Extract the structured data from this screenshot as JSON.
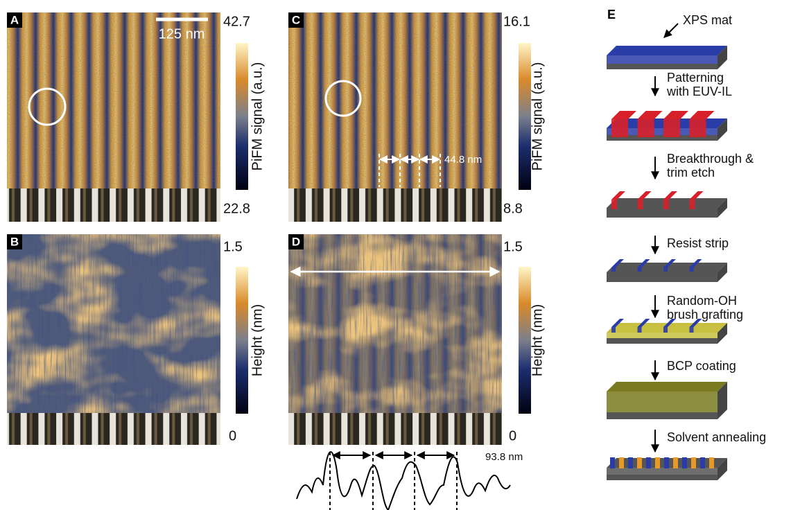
{
  "panels": [
    {
      "label": "A",
      "scale_bar": "125 nm",
      "colorbar_max": 42.7,
      "colorbar_min": 22.8,
      "colorbar_label": "PiFM signal (a.u.)"
    },
    {
      "label": "B",
      "colorbar_max": 1.5,
      "colorbar_min": 0,
      "colorbar_label": "Height (nm)"
    },
    {
      "label": "C",
      "colorbar_max": 16.1,
      "colorbar_min": 8.8,
      "colorbar_label": "PiFM signal (a.u.)",
      "annotation": "44.8 nm"
    },
    {
      "label": "D",
      "colorbar_max": 1.5,
      "colorbar_min": 0,
      "colorbar_label": "Height (nm)",
      "annotation": "93.8 nm"
    }
  ],
  "process": {
    "label": "E",
    "steps": [
      [
        "XPS mat"
      ],
      [
        "Patterning",
        "with EUV-IL"
      ],
      [
        "Breakthrough &",
        "trim etch"
      ],
      [
        "Resist strip"
      ],
      [
        "Random-OH",
        "brush grafting"
      ],
      [
        "BCP coating"
      ],
      [
        "Solvent annealing"
      ]
    ]
  }
}
